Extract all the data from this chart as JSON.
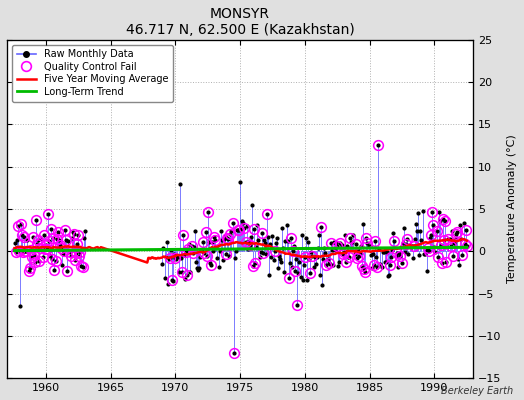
{
  "title": "MONSYR",
  "subtitle": "46.717 N, 62.500 E (Kazakhstan)",
  "ylabel": "Temperature Anomaly (°C)",
  "watermark": "Berkeley Earth",
  "xlim": [
    1957,
    1993
  ],
  "ylim": [
    -15,
    25
  ],
  "yticks": [
    -15,
    -10,
    -5,
    0,
    5,
    10,
    15,
    20,
    25
  ],
  "xticks": [
    1960,
    1965,
    1970,
    1975,
    1980,
    1985,
    1990
  ],
  "background_color": "#e0e0e0",
  "plot_bg_color": "#ffffff",
  "grid_color": "#b0b0b0",
  "raw_line_color": "#6666ff",
  "raw_marker_color": "#000000",
  "qc_fail_color": "#ff00ff",
  "moving_avg_color": "#ff0000",
  "trend_color": "#00bb00",
  "seed": 42
}
